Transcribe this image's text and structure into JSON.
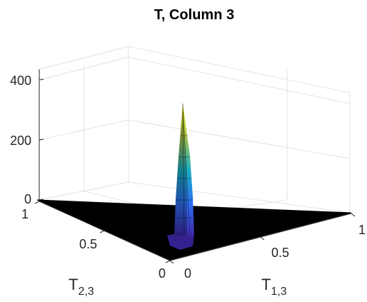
{
  "chart_data": {
    "type": "surface",
    "title": "T, Column 3",
    "xlabel": {
      "main": "T",
      "sub": "1,3"
    },
    "ylabel": {
      "main": "T",
      "sub": "2,3"
    },
    "zlabel": "",
    "xlim": [
      0,
      1
    ],
    "ylim": [
      0,
      1
    ],
    "zlim": [
      0,
      450
    ],
    "xticks": [
      "0",
      "0.5",
      "1"
    ],
    "yticks": [
      "0",
      "0.5",
      "1"
    ],
    "zticks": [
      "0",
      "200",
      "400"
    ],
    "grid": true,
    "colormap": "parula",
    "domain": "triangular simplex (x + y <= 1)",
    "peak": {
      "x": 0.15,
      "y": 0.1,
      "z": 410
    },
    "baseline_z": 0
  },
  "colors": {
    "surface_floor": "#000000",
    "grid": "#e0e0e0",
    "axis": "#262626",
    "peak_high": "#f9fb0e",
    "peak_mid": "#21a3bd",
    "peak_low": "#3e26a8"
  }
}
